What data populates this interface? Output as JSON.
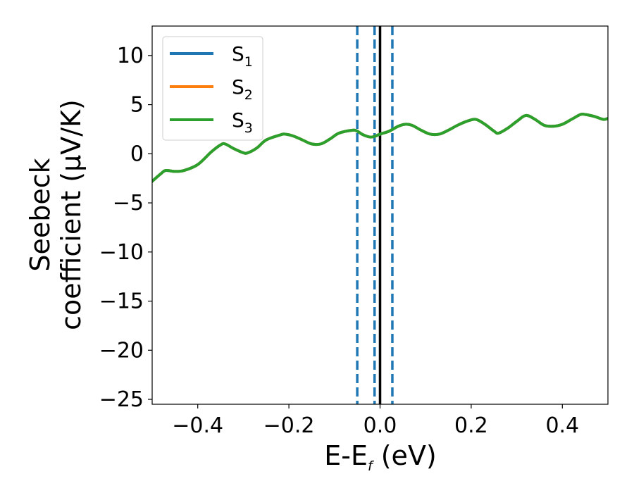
{
  "chart_data": {
    "type": "line",
    "title": "",
    "xlabel": {
      "main": "E-E",
      "sub": "f",
      "tail": " (eV)"
    },
    "ylabel": {
      "line1": "Seebeck",
      "line2": "coefficient  (μV/K)"
    },
    "xlim": [
      -0.5,
      0.5
    ],
    "ylim": [
      -25.5,
      13
    ],
    "xticks": [
      -0.4,
      -0.2,
      0.0,
      0.2,
      0.4
    ],
    "xtick_labels": [
      "−0.4",
      "−0.2",
      "0.0",
      "0.2",
      "0.4"
    ],
    "yticks": [
      10,
      5,
      0,
      -5,
      -10,
      -15,
      -20,
      -25
    ],
    "ytick_labels": [
      "10",
      "5",
      "0",
      "−5",
      "−10",
      "−15",
      "−20",
      "−25"
    ],
    "grid": false,
    "legend_position": "top-left",
    "vlines": {
      "solid": {
        "x": 0.0,
        "color": "#000000"
      },
      "dashed": {
        "x": [
          -0.05,
          -0.012,
          0.027
        ],
        "color": "#1f77b4"
      }
    },
    "series": [
      {
        "name": "S",
        "sub": "1",
        "color": "#1f77b4",
        "x": [
          -0.5,
          -0.48,
          -0.47,
          -0.45,
          -0.43,
          -0.4,
          -0.37,
          -0.35,
          -0.34,
          -0.32,
          -0.3,
          -0.29,
          -0.27,
          -0.25,
          -0.22,
          -0.21,
          -0.19,
          -0.17,
          -0.15,
          -0.13,
          -0.11,
          -0.09,
          -0.06,
          -0.05,
          -0.04,
          -0.03,
          -0.02,
          -0.01,
          0.0,
          0.02,
          0.04,
          0.055,
          0.07,
          0.09,
          0.11,
          0.13,
          0.15,
          0.17,
          0.19,
          0.21,
          0.23,
          0.25,
          0.26,
          0.28,
          0.3,
          0.32,
          0.34,
          0.36,
          0.38,
          0.4,
          0.42,
          0.44,
          0.45,
          0.47,
          0.49,
          0.5
        ],
        "values": [
          -2.8,
          -2.0,
          -1.7,
          -1.8,
          -1.7,
          -1.1,
          0.2,
          0.9,
          1.0,
          0.5,
          0.1,
          0.1,
          0.6,
          1.4,
          1.9,
          2.0,
          1.8,
          1.4,
          1.0,
          1.0,
          1.5,
          2.1,
          2.4,
          2.3,
          2.0,
          1.8,
          1.7,
          1.8,
          2.0,
          2.3,
          2.8,
          3.0,
          2.9,
          2.4,
          2.0,
          2.0,
          2.4,
          2.9,
          3.3,
          3.5,
          3.0,
          2.3,
          2.1,
          2.6,
          3.3,
          3.9,
          3.5,
          2.9,
          2.8,
          3.0,
          3.5,
          4.0,
          4.0,
          3.8,
          3.5,
          3.6
        ]
      },
      {
        "name": "S",
        "sub": "2",
        "color": "#ff7f0e",
        "x": [
          -0.5,
          -0.48,
          -0.47,
          -0.45,
          -0.43,
          -0.4,
          -0.37,
          -0.35,
          -0.34,
          -0.32,
          -0.3,
          -0.29,
          -0.27,
          -0.25,
          -0.22,
          -0.21,
          -0.19,
          -0.17,
          -0.15,
          -0.13,
          -0.11,
          -0.09,
          -0.06,
          -0.05,
          -0.04,
          -0.03,
          -0.02,
          -0.01,
          0.0,
          0.02,
          0.04,
          0.055,
          0.07,
          0.09,
          0.11,
          0.13,
          0.15,
          0.17,
          0.19,
          0.21,
          0.23,
          0.25,
          0.26,
          0.28,
          0.3,
          0.32,
          0.34,
          0.36,
          0.38,
          0.4,
          0.42,
          0.44,
          0.45,
          0.47,
          0.49,
          0.5
        ],
        "values": [
          -2.8,
          -2.0,
          -1.7,
          -1.8,
          -1.7,
          -1.1,
          0.2,
          0.9,
          1.0,
          0.5,
          0.1,
          0.1,
          0.6,
          1.4,
          1.9,
          2.0,
          1.8,
          1.4,
          1.0,
          1.0,
          1.5,
          2.1,
          2.4,
          2.3,
          2.0,
          1.8,
          1.7,
          1.8,
          2.0,
          2.3,
          2.8,
          3.0,
          2.9,
          2.4,
          2.0,
          2.0,
          2.4,
          2.9,
          3.3,
          3.5,
          3.0,
          2.3,
          2.1,
          2.6,
          3.3,
          3.9,
          3.5,
          2.9,
          2.8,
          3.0,
          3.5,
          4.0,
          4.0,
          3.8,
          3.5,
          3.6
        ]
      },
      {
        "name": "S",
        "sub": "3",
        "color": "#2ca02c",
        "x": [
          -0.5,
          -0.48,
          -0.47,
          -0.45,
          -0.43,
          -0.4,
          -0.37,
          -0.35,
          -0.34,
          -0.32,
          -0.3,
          -0.29,
          -0.27,
          -0.25,
          -0.22,
          -0.21,
          -0.19,
          -0.17,
          -0.15,
          -0.13,
          -0.11,
          -0.09,
          -0.06,
          -0.05,
          -0.04,
          -0.03,
          -0.02,
          -0.01,
          0.0,
          0.02,
          0.04,
          0.055,
          0.07,
          0.09,
          0.11,
          0.13,
          0.15,
          0.17,
          0.19,
          0.21,
          0.23,
          0.25,
          0.26,
          0.28,
          0.3,
          0.32,
          0.34,
          0.36,
          0.38,
          0.4,
          0.42,
          0.44,
          0.45,
          0.47,
          0.49,
          0.5
        ],
        "values": [
          -2.8,
          -2.0,
          -1.7,
          -1.8,
          -1.7,
          -1.1,
          0.2,
          0.9,
          1.0,
          0.5,
          0.1,
          0.1,
          0.6,
          1.4,
          1.9,
          2.0,
          1.8,
          1.4,
          1.0,
          1.0,
          1.5,
          2.1,
          2.4,
          2.3,
          2.0,
          1.8,
          1.7,
          1.8,
          2.0,
          2.3,
          2.8,
          3.0,
          2.9,
          2.4,
          2.0,
          2.0,
          2.4,
          2.9,
          3.3,
          3.5,
          3.0,
          2.3,
          2.1,
          2.6,
          3.3,
          3.9,
          3.5,
          2.9,
          2.8,
          3.0,
          3.5,
          4.0,
          4.0,
          3.8,
          3.5,
          3.6
        ]
      }
    ]
  }
}
